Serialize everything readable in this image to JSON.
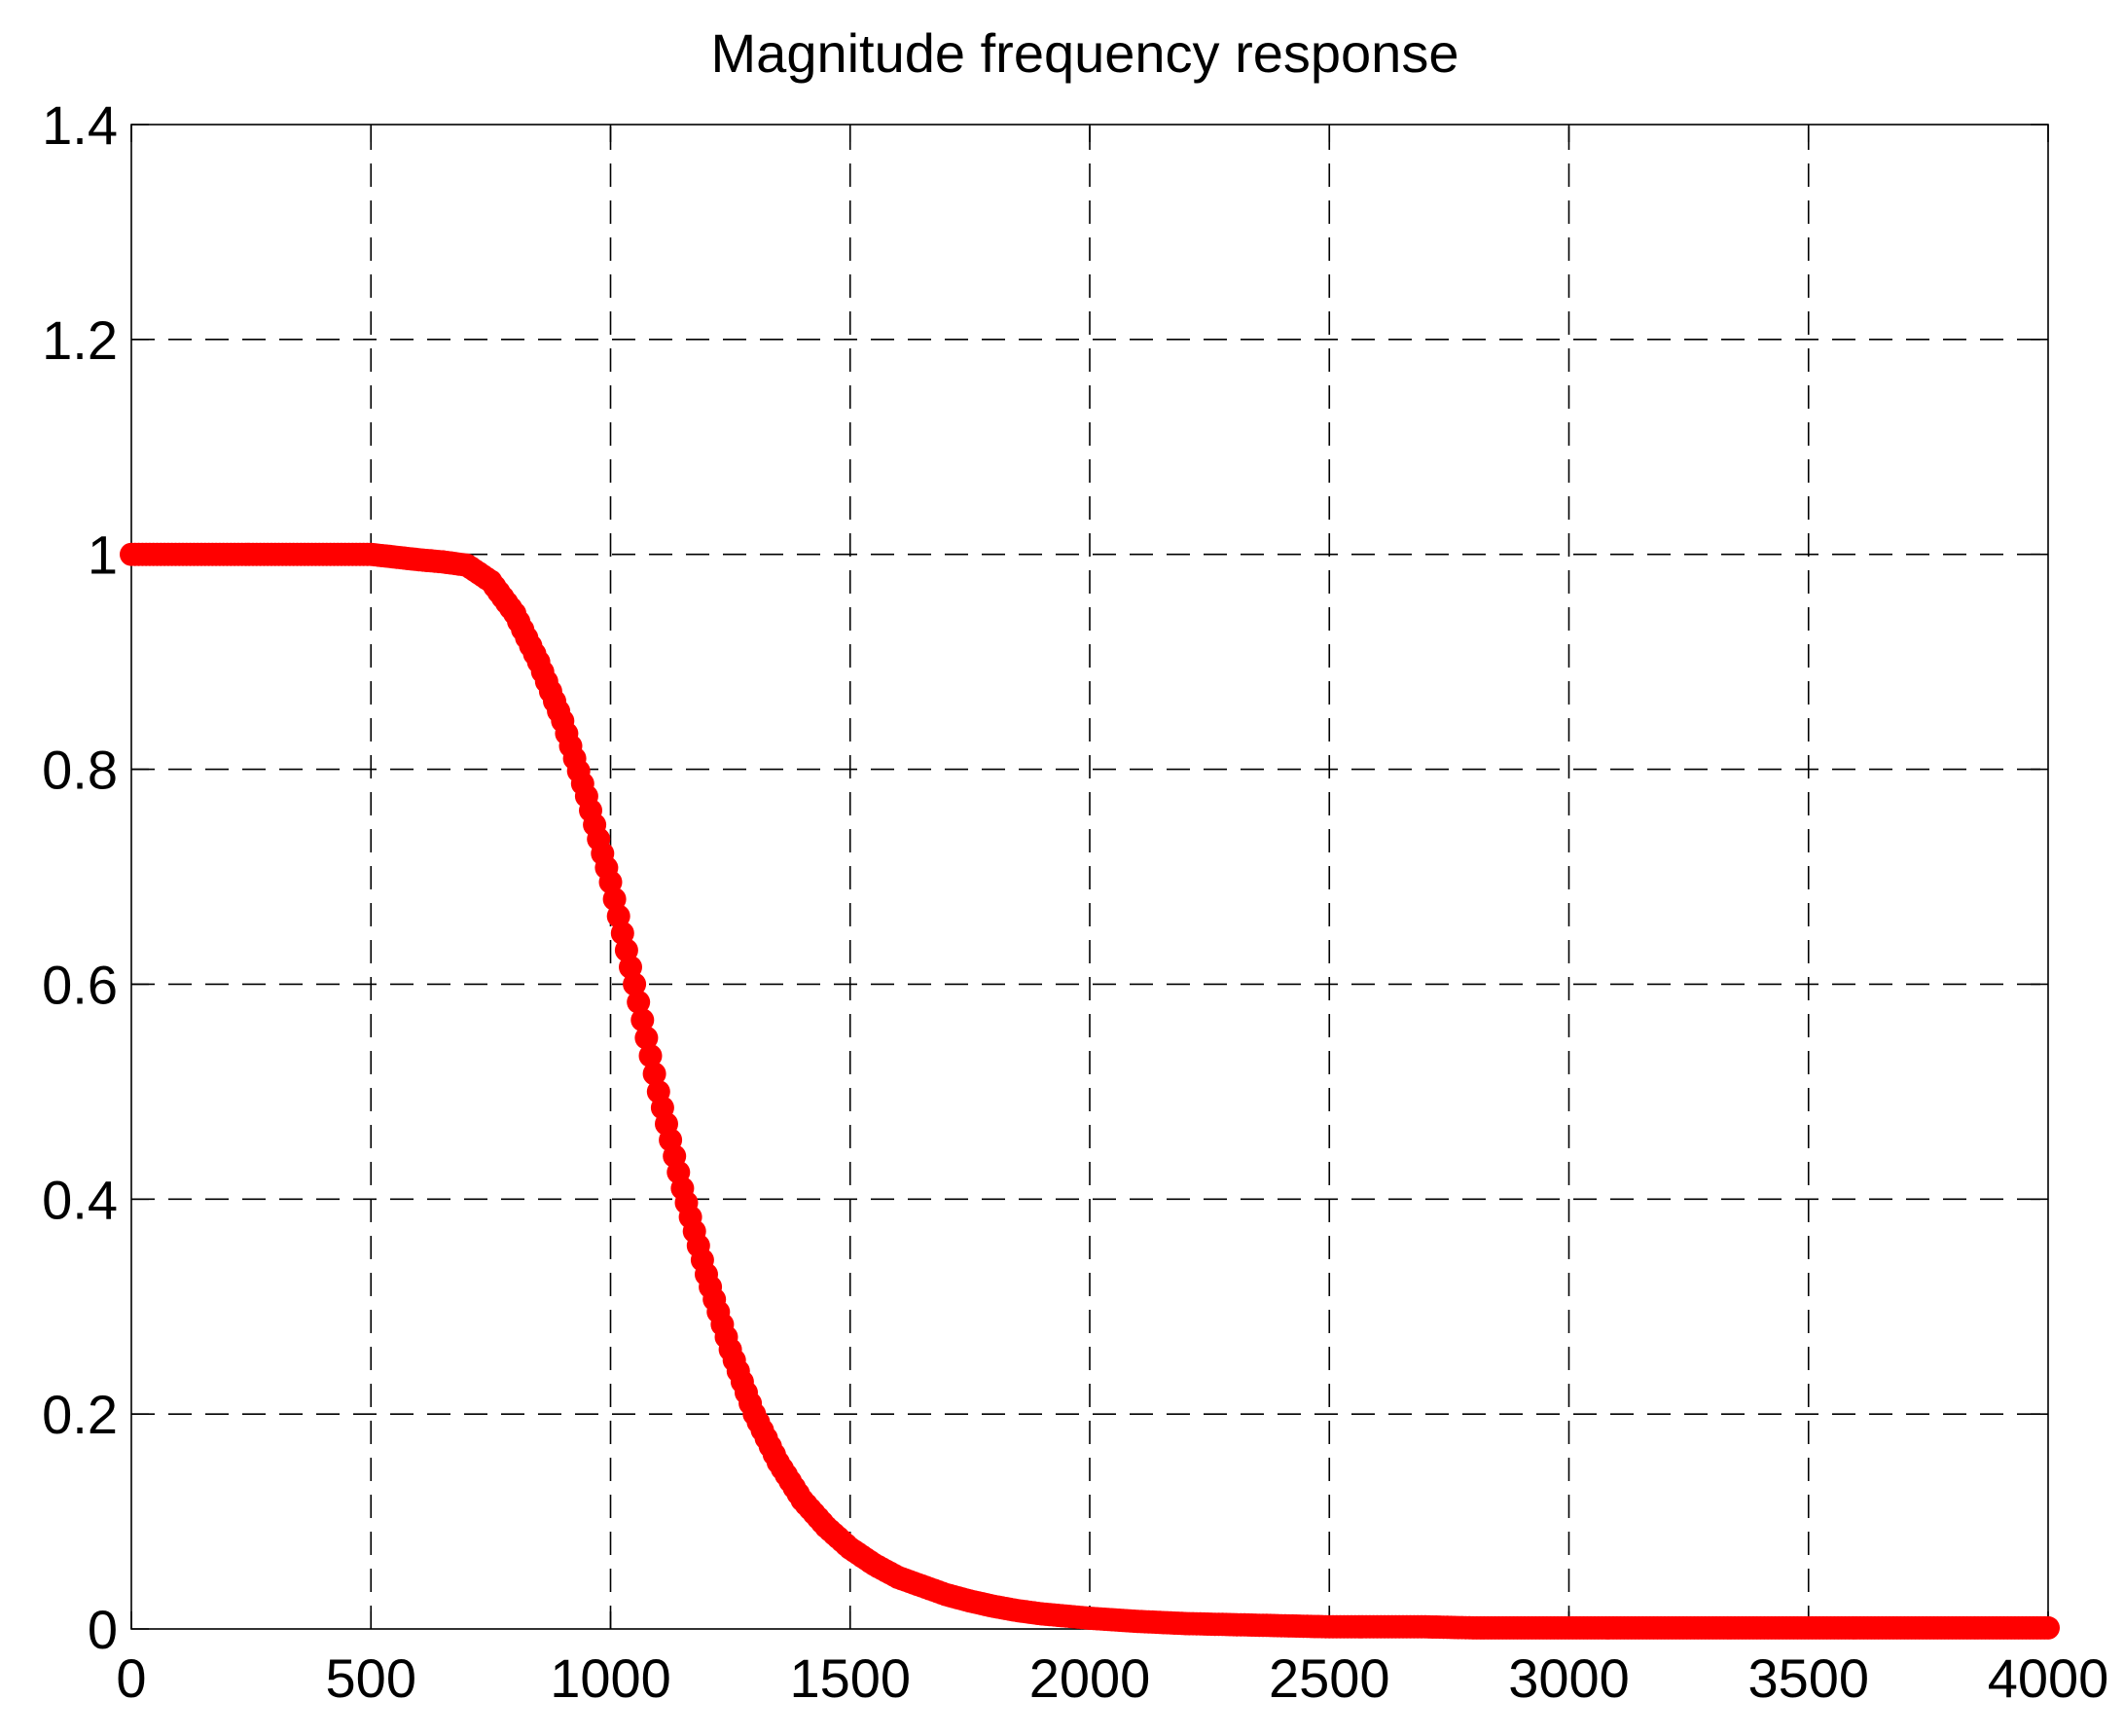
{
  "chart_data": {
    "type": "scatter",
    "title": "Magnitude frequency response",
    "xlabel": "",
    "ylabel": "",
    "xlim": [
      0,
      4000
    ],
    "ylim": [
      0,
      1.4
    ],
    "grid": true,
    "legend": null,
    "xticks": [
      0,
      500,
      1000,
      1500,
      2000,
      2500,
      3000,
      3500,
      4000
    ],
    "xtick_labels": [
      "0",
      "500",
      "1000",
      "1500",
      "2000",
      "2500",
      "3000",
      "3500",
      "4000"
    ],
    "yticks": [
      0,
      0.2,
      0.4,
      0.6,
      0.8,
      1.0,
      1.2,
      1.4
    ],
    "ytick_labels": [
      "0",
      "0.2",
      "0.4",
      "0.6",
      "0.8",
      "1",
      "1.2",
      "1.4"
    ],
    "marker_color": "#ff0000",
    "series": [
      {
        "x": [
          0,
          100,
          200,
          300,
          400,
          500,
          600,
          650,
          700,
          750,
          800,
          850,
          900,
          950,
          1000,
          1050,
          1100,
          1150,
          1200,
          1250,
          1300,
          1350,
          1400,
          1450,
          1500,
          1550,
          1600,
          1650,
          1700,
          1750,
          1800,
          1850,
          1900,
          1950,
          2000,
          2100,
          2200,
          2300,
          2400,
          2500,
          2600,
          2700,
          2800,
          2900,
          3000,
          3100,
          3200,
          3300,
          3400,
          3500,
          3600,
          3700,
          3800,
          3900,
          4000
        ],
        "y": [
          1.0,
          1.0,
          1.0,
          1.0,
          1.0,
          1.0,
          0.995,
          0.993,
          0.99,
          0.975,
          0.945,
          0.9,
          0.845,
          0.775,
          0.695,
          0.6,
          0.5,
          0.41,
          0.33,
          0.26,
          0.2,
          0.155,
          0.12,
          0.095,
          0.075,
          0.06,
          0.048,
          0.04,
          0.032,
          0.026,
          0.021,
          0.017,
          0.014,
          0.012,
          0.01,
          0.007,
          0.005,
          0.004,
          0.003,
          0.002,
          0.002,
          0.002,
          0.001,
          0.001,
          0.001,
          0.001,
          0.001,
          0.001,
          0.001,
          0.001,
          0.001,
          0.001,
          0.001,
          0.001,
          0.001
        ]
      }
    ]
  }
}
